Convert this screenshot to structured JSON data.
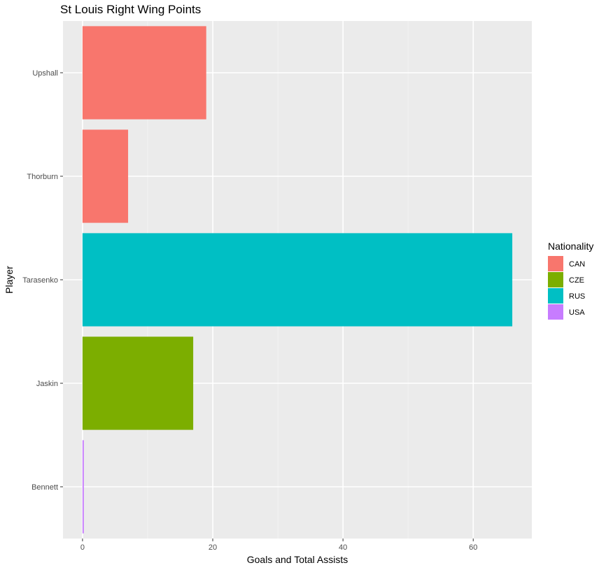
{
  "chart_data": {
    "type": "bar",
    "orientation": "horizontal",
    "title": "St Louis Right Wing Points",
    "xlabel": "Goals and Total Assists",
    "ylabel": "Player",
    "xlim": [
      -3,
      69
    ],
    "x_ticks": [
      0,
      20,
      40,
      60
    ],
    "categories": [
      "Upshall",
      "Thorburn",
      "Tarasenko",
      "Jaskin",
      "Bennett"
    ],
    "values": [
      19,
      7,
      66,
      17,
      0.2
    ],
    "nationality": [
      "CAN",
      "CAN",
      "RUS",
      "CZE",
      "USA"
    ],
    "legend": {
      "title": "Nationality",
      "placement": "right",
      "entries": [
        {
          "label": "CAN",
          "color": "#F8766D"
        },
        {
          "label": "CZE",
          "color": "#7CAE00"
        },
        {
          "label": "RUS",
          "color": "#00BFC4"
        },
        {
          "label": "USA",
          "color": "#C77CFF"
        }
      ]
    },
    "grid": true,
    "panel_background": "#EBEBEB"
  }
}
